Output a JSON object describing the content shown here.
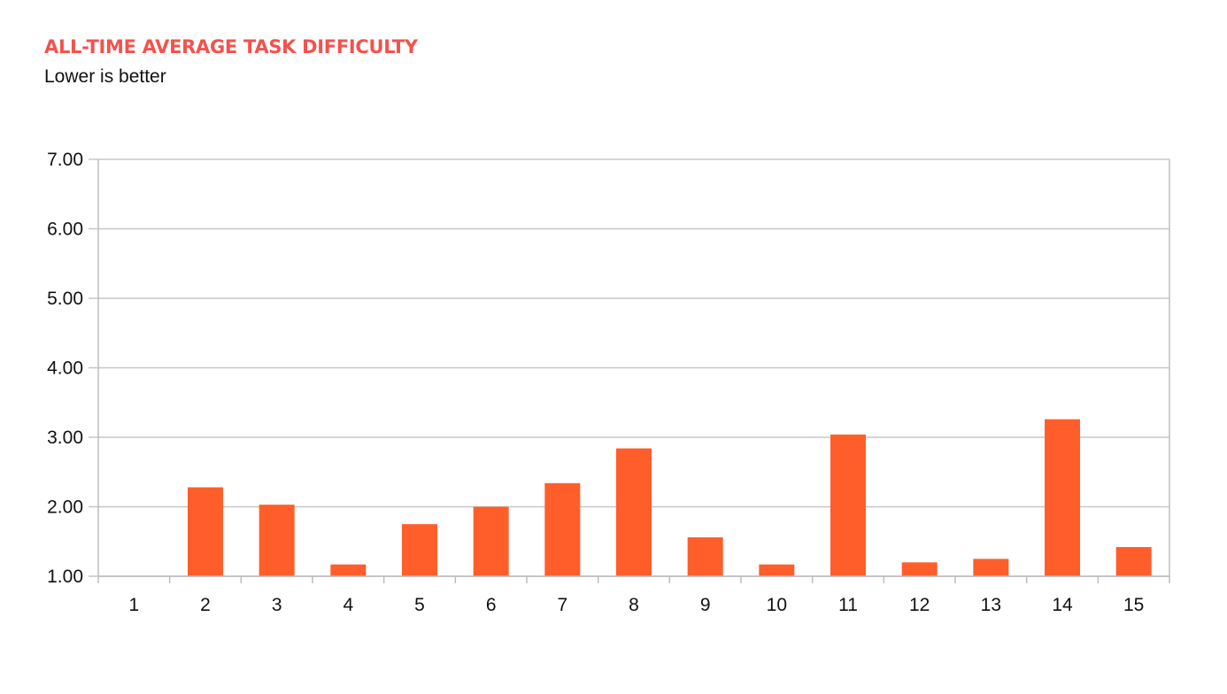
{
  "title": "ALL-TIME AVERAGE TASK DIFFICULTY",
  "subtitle": "Lower is better",
  "colors": {
    "title": "#f4524d",
    "bar": "#ff5e2a",
    "grid": "#c7c7c7",
    "axis": "#bdbdbd"
  },
  "chart_data": {
    "type": "bar",
    "title": "ALL-TIME AVERAGE TASK DIFFICULTY",
    "subtitle": "Lower is better",
    "xlabel": "",
    "ylabel": "",
    "categories": [
      "1",
      "2",
      "3",
      "4",
      "5",
      "6",
      "7",
      "8",
      "9",
      "10",
      "11",
      "12",
      "13",
      "14",
      "15"
    ],
    "series": [
      {
        "values": [
          1.0,
          2.28,
          2.03,
          1.17,
          1.75,
          2.0,
          2.34,
          2.84,
          1.56,
          1.17,
          3.04,
          1.2,
          1.25,
          3.26,
          1.42
        ]
      }
    ],
    "ylim": [
      1,
      7
    ],
    "yticks": [
      "1.00",
      "2.00",
      "3.00",
      "4.00",
      "5.00",
      "6.00",
      "7.00"
    ],
    "grid": true,
    "legend": "none"
  }
}
